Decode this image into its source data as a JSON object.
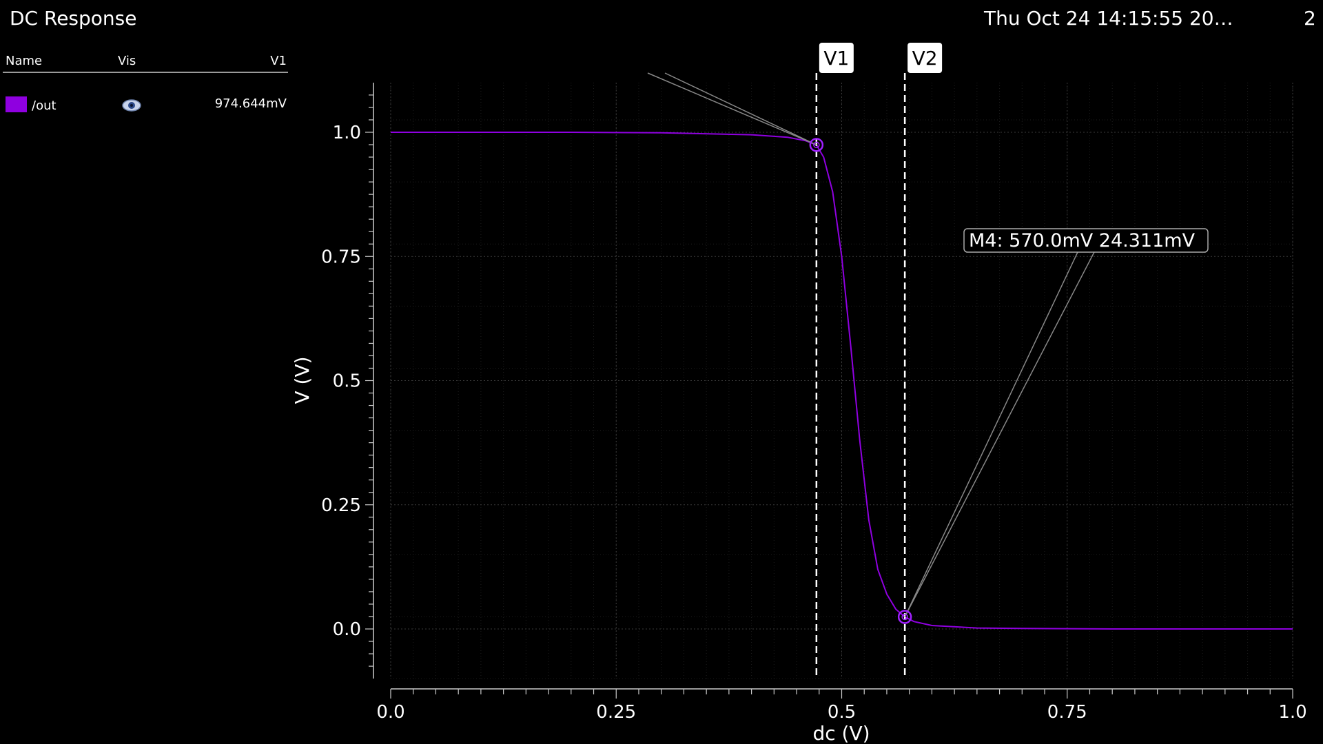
{
  "window": {
    "title": "DC Response",
    "timestamp": "Thu Oct 24 14:15:55 20…",
    "page_number": "2"
  },
  "legend": {
    "headers": {
      "name": "Name",
      "vis": "Vis",
      "value": "V1"
    },
    "signals": [
      {
        "name": "/out",
        "color": "#8f00e0",
        "visible_icon": "eye-icon",
        "value": "974.644mV"
      }
    ]
  },
  "chart_data": {
    "type": "line",
    "xlabel": "dc (V)",
    "ylabel": "V (V)",
    "xlim": [
      0.0,
      1.0
    ],
    "ylim": [
      -0.1,
      1.1
    ],
    "x_ticks": [
      "0.0",
      "0.25",
      "0.5",
      "0.75",
      "1.0"
    ],
    "x_tick_values": [
      0.0,
      0.25,
      0.5,
      0.75,
      1.0
    ],
    "y_ticks": [
      "0.0",
      "0.25",
      "0.5",
      "0.75",
      "1.0"
    ],
    "y_tick_values": [
      0.0,
      0.25,
      0.5,
      0.75,
      1.0
    ],
    "grid": true,
    "series": [
      {
        "name": "/out",
        "color": "#8f00e0",
        "x": [
          0.0,
          0.1,
          0.2,
          0.3,
          0.4,
          0.44,
          0.46,
          0.472,
          0.48,
          0.49,
          0.5,
          0.51,
          0.52,
          0.53,
          0.54,
          0.55,
          0.56,
          0.57,
          0.58,
          0.6,
          0.65,
          0.7,
          0.8,
          1.0
        ],
        "y": [
          1.0,
          1.0,
          1.0,
          0.999,
          0.995,
          0.99,
          0.983,
          0.9746,
          0.95,
          0.88,
          0.75,
          0.57,
          0.38,
          0.22,
          0.12,
          0.07,
          0.04,
          0.0243,
          0.015,
          0.007,
          0.002,
          0.001,
          0.0,
          0.0
        ]
      }
    ],
    "cursors": [
      {
        "label": "V1",
        "x": 0.472
      },
      {
        "label": "V2",
        "x": 0.57
      }
    ],
    "markers": [
      {
        "x": 0.472,
        "y": 0.9746
      },
      {
        "x": 0.57,
        "y": 0.0243,
        "label": "M4: 570.0mV 24.311mV"
      }
    ]
  }
}
